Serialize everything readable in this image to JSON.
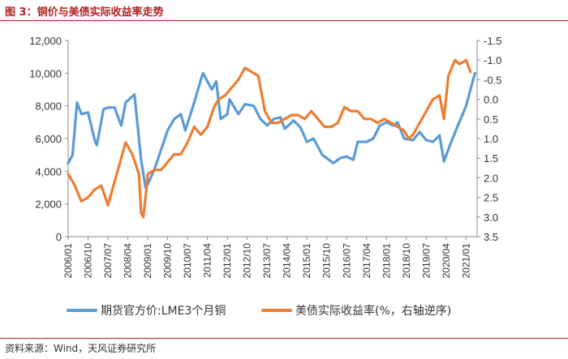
{
  "header": {
    "title": "图 3：铜价与美债实际收益率走势"
  },
  "footer": {
    "source": "资料来源：Wind，天风证券研究所"
  },
  "colors": {
    "title": "#b22222",
    "series_copper": "#5b9bd5",
    "series_yield": "#ed7d31"
  },
  "chart_data": {
    "type": "line",
    "title": "",
    "grid": false,
    "legend": "bottom",
    "x_type": "date",
    "x_ticks": [
      "2006/01",
      "2006/10",
      "2007/07",
      "2008/04",
      "2009/01",
      "2009/10",
      "2010/07",
      "2011/04",
      "2012/01",
      "2012/10",
      "2013/07",
      "2014/04",
      "2015/01",
      "2015/10",
      "2016/07",
      "2017/04",
      "2018/01",
      "2018/10",
      "2019/07",
      "2020/04",
      "2021/01"
    ],
    "y_left": {
      "min": 0,
      "max": 12000,
      "ticks": [
        "0",
        "2,000",
        "4,000",
        "6,000",
        "8,000",
        "10,000",
        "12,000"
      ]
    },
    "y_right": {
      "min": -1.5,
      "max": 3.5,
      "inverted": true,
      "ticks": [
        "-1.5",
        "-1.0",
        "-0.5",
        "0.0",
        "0.5",
        "1.0",
        "1.5",
        "2.0",
        "2.5",
        "3.0",
        "3.5"
      ]
    },
    "series": [
      {
        "name": "期货官方价:LME3个月铜",
        "axis": "left",
        "color": "#5b9bd5",
        "x": [
          "2006/01",
          "2006/03",
          "2006/05",
          "2006/07",
          "2006/10",
          "2007/01",
          "2007/02",
          "2007/05",
          "2007/07",
          "2007/10",
          "2008/01",
          "2008/03",
          "2008/07",
          "2008/10",
          "2008/12",
          "2009/01",
          "2009/04",
          "2009/07",
          "2009/10",
          "2010/01",
          "2010/04",
          "2010/06",
          "2010/10",
          "2011/01",
          "2011/02",
          "2011/06",
          "2011/08",
          "2011/10",
          "2012/01",
          "2012/02",
          "2012/06",
          "2012/09",
          "2013/01",
          "2013/04",
          "2013/07",
          "2013/10",
          "2014/01",
          "2014/03",
          "2014/07",
          "2014/10",
          "2015/01",
          "2015/04",
          "2015/08",
          "2015/10",
          "2016/01",
          "2016/04",
          "2016/07",
          "2016/10",
          "2016/12",
          "2017/04",
          "2017/07",
          "2017/10",
          "2018/01",
          "2018/04",
          "2018/06",
          "2018/09",
          "2019/01",
          "2019/04",
          "2019/07",
          "2019/10",
          "2020/01",
          "2020/03",
          "2020/06",
          "2020/09",
          "2021/01",
          "2021/03",
          "2021/05"
        ],
        "values": [
          4500,
          5000,
          8200,
          7500,
          7600,
          5900,
          5600,
          7800,
          7900,
          7900,
          6800,
          8200,
          8700,
          4700,
          3000,
          3200,
          4100,
          5300,
          6500,
          7200,
          7500,
          6500,
          8200,
          9600,
          10000,
          9000,
          9500,
          7200,
          7500,
          8400,
          7500,
          8100,
          8000,
          7200,
          6800,
          7200,
          7300,
          6600,
          7100,
          6700,
          5800,
          6000,
          5000,
          4800,
          4500,
          4800,
          4900,
          4700,
          5800,
          5800,
          6000,
          6800,
          7000,
          6800,
          7000,
          6000,
          5900,
          6400,
          5900,
          5800,
          6200,
          4600,
          5700,
          6700,
          8000,
          9000,
          10000
        ]
      },
      {
        "name": "美债实际收益率(%，右轴逆序)",
        "axis": "right",
        "color": "#ed7d31",
        "x": [
          "2006/01",
          "2006/04",
          "2006/07",
          "2006/10",
          "2007/01",
          "2007/04",
          "2007/07",
          "2007/10",
          "2008/01",
          "2008/03",
          "2008/06",
          "2008/09",
          "2008/10",
          "2008/11",
          "2008/12",
          "2009/01",
          "2009/04",
          "2009/07",
          "2009/10",
          "2010/01",
          "2010/04",
          "2010/07",
          "2010/10",
          "2011/01",
          "2011/04",
          "2011/07",
          "2011/09",
          "2011/12",
          "2012/03",
          "2012/06",
          "2012/09",
          "2012/12",
          "2013/03",
          "2013/06",
          "2013/09",
          "2013/12",
          "2014/03",
          "2014/06",
          "2014/09",
          "2014/12",
          "2015/03",
          "2015/06",
          "2015/09",
          "2015/12",
          "2016/03",
          "2016/06",
          "2016/09",
          "2016/12",
          "2017/03",
          "2017/06",
          "2017/09",
          "2017/12",
          "2018/03",
          "2018/06",
          "2018/09",
          "2018/11",
          "2019/01",
          "2019/04",
          "2019/07",
          "2019/10",
          "2020/01",
          "2020/03",
          "2020/05",
          "2020/08",
          "2020/10",
          "2021/01",
          "2021/03"
        ],
        "values": [
          1.9,
          2.2,
          2.6,
          2.5,
          2.3,
          2.2,
          2.7,
          2.1,
          1.5,
          1.1,
          1.4,
          1.9,
          2.9,
          3.0,
          2.5,
          1.9,
          1.8,
          1.8,
          1.6,
          1.4,
          1.4,
          1.1,
          0.7,
          0.9,
          0.7,
          0.2,
          0.0,
          -0.1,
          -0.3,
          -0.5,
          -0.8,
          -0.7,
          -0.6,
          0.3,
          0.6,
          0.6,
          0.5,
          0.4,
          0.4,
          0.5,
          0.3,
          0.5,
          0.7,
          0.7,
          0.6,
          0.2,
          0.3,
          0.3,
          0.5,
          0.5,
          0.6,
          0.5,
          0.6,
          0.7,
          0.8,
          1.0,
          0.9,
          0.6,
          0.3,
          0.0,
          -0.1,
          0.5,
          -0.6,
          -1.0,
          -0.9,
          -1.0,
          -0.7
        ]
      }
    ]
  }
}
